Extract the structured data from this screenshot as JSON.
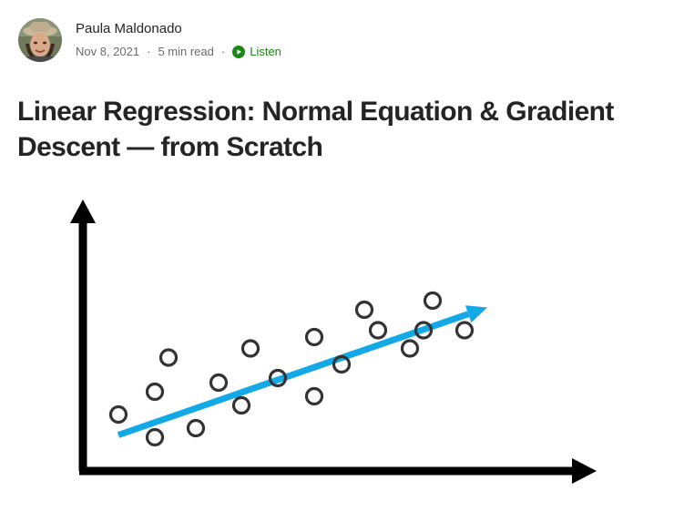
{
  "author": {
    "name": "Paula Maldonado",
    "avatar_icon": "profile-photo"
  },
  "meta": {
    "date": "Nov 8, 2021",
    "separator": "·",
    "read_time": "5 min read",
    "listen_label": "Listen",
    "listen_icon": "play-circle-icon"
  },
  "article": {
    "title": "Linear Regression: Normal Equation & Gradient Descent — from Scratch"
  },
  "colors": {
    "listen_green": "#1a8917",
    "regression_line": "#12a9e6",
    "points": "#333333",
    "axes": "#000000"
  },
  "chart_data": {
    "type": "scatter",
    "title": "",
    "xlabel": "",
    "ylabel": "",
    "xlim": [
      0,
      10
    ],
    "ylim": [
      0,
      10
    ],
    "grid": false,
    "points": [
      {
        "x": 0.6,
        "y": 2.0
      },
      {
        "x": 1.4,
        "y": 1.0
      },
      {
        "x": 1.4,
        "y": 3.0
      },
      {
        "x": 1.7,
        "y": 4.5
      },
      {
        "x": 2.3,
        "y": 1.4
      },
      {
        "x": 2.8,
        "y": 3.4
      },
      {
        "x": 3.3,
        "y": 2.4
      },
      {
        "x": 3.5,
        "y": 4.9
      },
      {
        "x": 4.1,
        "y": 3.6
      },
      {
        "x": 4.9,
        "y": 2.8
      },
      {
        "x": 4.9,
        "y": 5.4
      },
      {
        "x": 5.5,
        "y": 4.2
      },
      {
        "x": 6.0,
        "y": 6.6
      },
      {
        "x": 6.3,
        "y": 5.7
      },
      {
        "x": 7.0,
        "y": 4.9
      },
      {
        "x": 7.3,
        "y": 5.7
      },
      {
        "x": 7.5,
        "y": 7.0
      },
      {
        "x": 8.2,
        "y": 5.7
      }
    ],
    "fit_line": {
      "from": {
        "x": 0.6,
        "y": 1.1
      },
      "to": {
        "x": 8.7,
        "y": 6.7
      },
      "arrow": true
    }
  }
}
